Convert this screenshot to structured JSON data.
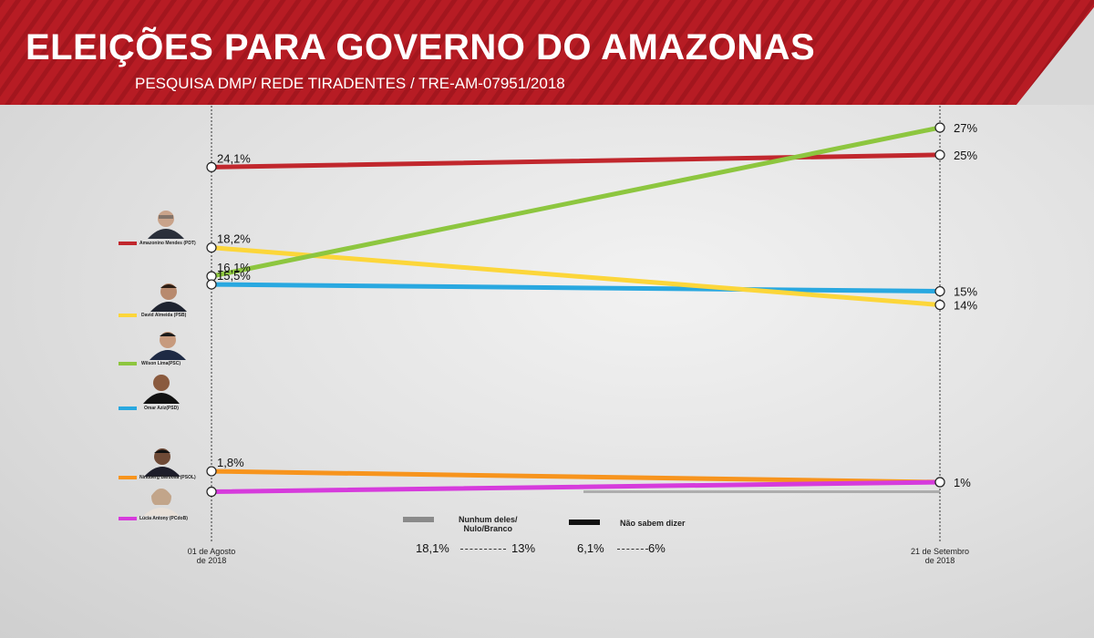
{
  "title": "ELEIÇÕES PARA GOVERNO DO AMAZONAS",
  "subtitle": "PESQUISA DMP/ REDE TIRADENTES / TRE-AM-07951/2018",
  "colors": {
    "header": "#b71c24",
    "stripe": "#a01820"
  },
  "chart_data": {
    "type": "line",
    "x": [
      "01 de Agosto de 2018",
      "21 de Setembro de 2018"
    ],
    "ylim": [
      0,
      30
    ],
    "grid": false,
    "series": [
      {
        "name": "Amazonino Mendes (PDT)",
        "color": "#c1272d",
        "values": [
          24.1,
          25
        ],
        "labels": [
          "24,1%",
          "25%"
        ]
      },
      {
        "name": "David Almeida (PSB)",
        "color": "#fcd63a",
        "values": [
          18.2,
          14
        ],
        "labels": [
          "18,2%",
          "14%"
        ]
      },
      {
        "name": "Wilson Lima(PSC)",
        "color": "#8dc63f",
        "values": [
          16.1,
          27
        ],
        "labels": [
          "16,1%",
          "27%"
        ]
      },
      {
        "name": "Omar Aziz(PSD)",
        "color": "#29a8e0",
        "values": [
          15.5,
          15
        ],
        "labels": [
          "15,5%",
          "15%"
        ]
      },
      {
        "name": "Nindberg Barbosa (PSOL)",
        "color": "#f7941d",
        "values": [
          1.8,
          1
        ],
        "labels": [
          "1,8%",
          ""
        ]
      },
      {
        "name": "Lúcia Antony (PCdoB)",
        "color": "#d63bdc",
        "values": [
          0.3,
          1
        ],
        "labels": [
          "",
          "1%"
        ]
      }
    ],
    "extra_series": [
      {
        "name": "Nunhum deles/ Nulo/Branco",
        "color": "#8a8a8a",
        "values": [
          18.1,
          13
        ],
        "labels": [
          "18,1%",
          "13%"
        ]
      },
      {
        "name": "Não sabem dizer",
        "color": "#111111",
        "values": [
          6.1,
          6
        ],
        "labels": [
          "6,1%",
          "6%"
        ]
      }
    ],
    "xlabels": [
      {
        "line1": "01 de Agosto",
        "line2": "de 2018"
      },
      {
        "line1": "21 de Setembro",
        "line2": "de 2018"
      }
    ]
  },
  "legend": {
    "nulo_line1": "Nunhum deles/",
    "nulo_line2": "Nulo/Branco",
    "nao_sabem": "Não sabem dizer"
  }
}
